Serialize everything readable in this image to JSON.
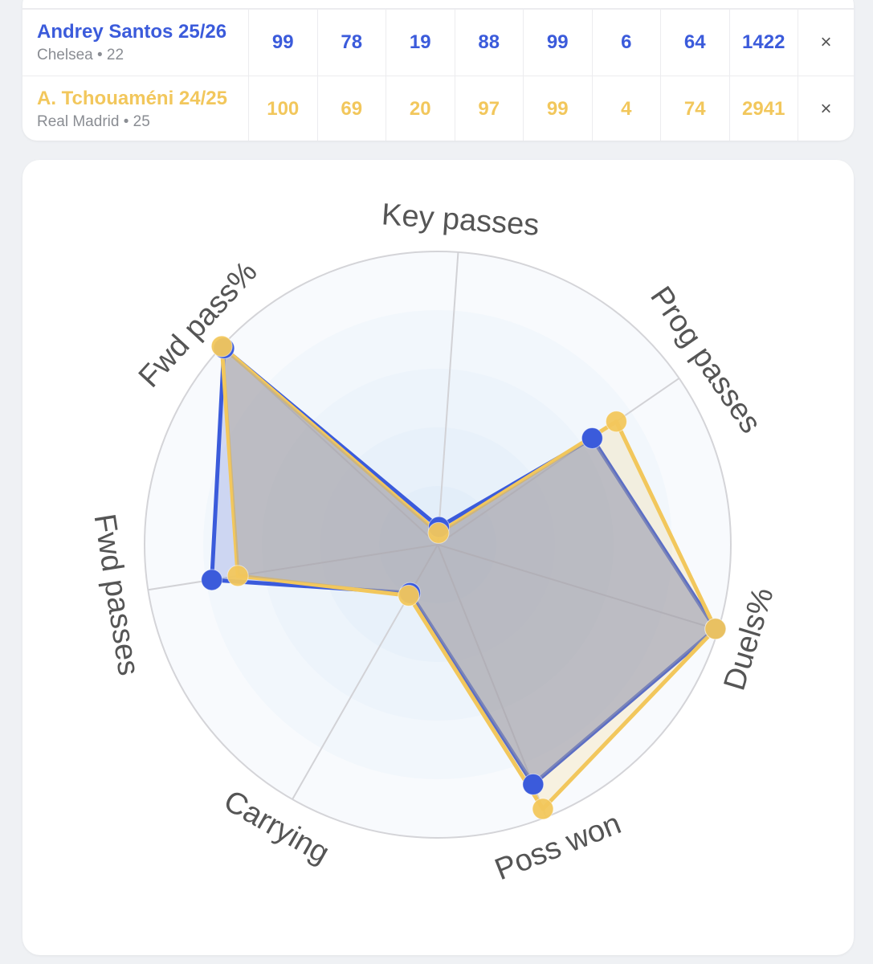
{
  "table": {
    "rows": [
      {
        "name": "Andrey Santos 25/26",
        "sub": "Chelsea • 22",
        "values": [
          "99",
          "78",
          "19",
          "88",
          "99",
          "6",
          "64",
          "1422"
        ],
        "remove_label": "×",
        "color": "#3b5bdb"
      },
      {
        "name": "A. Tchouaméni 24/25",
        "sub": "Real Madrid • 25",
        "values": [
          "100",
          "69",
          "20",
          "97",
          "99",
          "4",
          "74",
          "2941"
        ],
        "remove_label": "×",
        "color": "#f2c75c"
      }
    ]
  },
  "chart_data": {
    "type": "radar",
    "axes": [
      "Key passes",
      "Prog passes",
      "Duels%",
      "Poss won",
      "Carrying",
      "Fwd passes",
      "Fwd pass%"
    ],
    "range": [
      0,
      100
    ],
    "series": [
      {
        "name": "Andrey Santos 25/26",
        "color": "#3b5bdb",
        "values": [
          6,
          64,
          99,
          88,
          19,
          78,
          99
        ]
      },
      {
        "name": "A. Tchouaméni 24/25",
        "color": "#f2c75c",
        "values": [
          4,
          74,
          99,
          97,
          20,
          69,
          100
        ]
      }
    ],
    "rings": 5
  }
}
